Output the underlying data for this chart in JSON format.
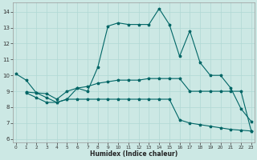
{
  "xlabel": "Humidex (Indice chaleur)",
  "bg_color": "#cce8e4",
  "line_color": "#006666",
  "grid_color": "#b0d8d4",
  "xlim": [
    -0.3,
    23.3
  ],
  "ylim": [
    5.8,
    14.6
  ],
  "yticks": [
    6,
    7,
    8,
    9,
    10,
    11,
    12,
    13,
    14
  ],
  "xticks": [
    0,
    1,
    2,
    3,
    4,
    5,
    6,
    7,
    8,
    9,
    10,
    11,
    12,
    13,
    14,
    15,
    16,
    17,
    18,
    19,
    20,
    21,
    22,
    23
  ],
  "line1_x": [
    0,
    1,
    2,
    3,
    4,
    5,
    6,
    7,
    8,
    9,
    10,
    11,
    12,
    13,
    14,
    15,
    16,
    17,
    18,
    19,
    20,
    21,
    22,
    23
  ],
  "line1_y": [
    10.1,
    9.7,
    8.9,
    8.6,
    8.3,
    8.5,
    9.2,
    9.0,
    10.5,
    13.1,
    13.3,
    13.2,
    13.2,
    13.2,
    14.2,
    13.2,
    11.2,
    12.8,
    10.8,
    10.0,
    10.0,
    9.2,
    7.9,
    7.1
  ],
  "line2_x": [
    1,
    2,
    3,
    4,
    5,
    6,
    7,
    8,
    9,
    10,
    11,
    12,
    13,
    14,
    15,
    16,
    17,
    18,
    19,
    20,
    21,
    22,
    23
  ],
  "line2_y": [
    8.95,
    8.9,
    8.85,
    8.5,
    9.0,
    9.2,
    9.3,
    9.5,
    9.6,
    9.7,
    9.7,
    9.7,
    9.8,
    9.8,
    9.8,
    9.8,
    9.0,
    9.0,
    9.0,
    9.0,
    9.0,
    9.0,
    6.5
  ],
  "line3_x": [
    1,
    2,
    3,
    4,
    5,
    6,
    7,
    8,
    9,
    10,
    11,
    12,
    13,
    14,
    15,
    16,
    17,
    18,
    19,
    20,
    21,
    22,
    23
  ],
  "line3_y": [
    8.9,
    8.6,
    8.3,
    8.3,
    8.5,
    8.5,
    8.5,
    8.5,
    8.5,
    8.5,
    8.5,
    8.5,
    8.5,
    8.5,
    8.5,
    7.2,
    7.0,
    6.9,
    6.8,
    6.7,
    6.6,
    6.55,
    6.5
  ]
}
